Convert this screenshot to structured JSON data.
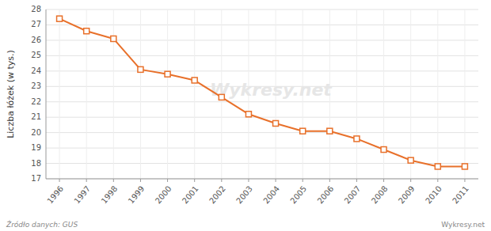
{
  "chart_data": {
    "type": "line",
    "x": [
      1996,
      1997,
      1998,
      1999,
      2000,
      2001,
      2002,
      2003,
      2004,
      2005,
      2006,
      2007,
      2008,
      2009,
      2010,
      2011
    ],
    "values": [
      27.4,
      26.6,
      26.1,
      24.1,
      23.8,
      23.4,
      22.3,
      21.2,
      20.6,
      20.1,
      20.1,
      19.6,
      18.9,
      18.2,
      17.8,
      17.8
    ],
    "color": "#E8702A",
    "marker": "square",
    "y_label": "Liczba łóżek (w tys.)",
    "xlim": [
      1995.5,
      2011.5
    ],
    "xticks": [
      1996,
      1997,
      1998,
      1999,
      2000,
      2001,
      2002,
      2003,
      2004,
      2005,
      2006,
      2007,
      2008,
      2009,
      2010,
      2011
    ],
    "ylim": [
      17,
      28
    ],
    "yticks": [
      17,
      18,
      19,
      20,
      21,
      22,
      23,
      24,
      25,
      26,
      27,
      28
    ],
    "grid": true,
    "annotations": [
      "Wykresy.net",
      "Źródło danych:  GUS",
      "Wykresy.net"
    ]
  }
}
